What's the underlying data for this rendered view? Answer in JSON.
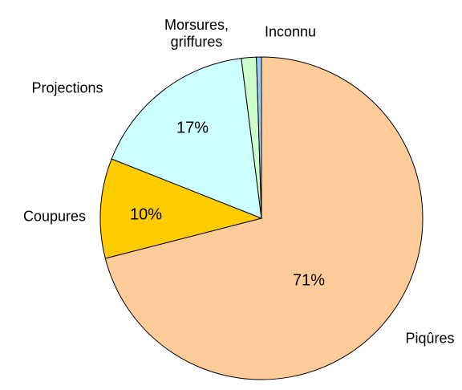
{
  "chart_data": {
    "type": "pie",
    "categories": [
      "Piqûres",
      "Coupures",
      "Projections",
      "Morsures, griffures",
      "Inconnu"
    ],
    "values": [
      71,
      10,
      17,
      1.5,
      0.5
    ],
    "value_labels": [
      "71%",
      "10%",
      "17%",
      null,
      null
    ],
    "colors": [
      "#ffcc99",
      "#ffcc00",
      "#ccffff",
      "#ccffcc",
      "#99ccff"
    ]
  }
}
